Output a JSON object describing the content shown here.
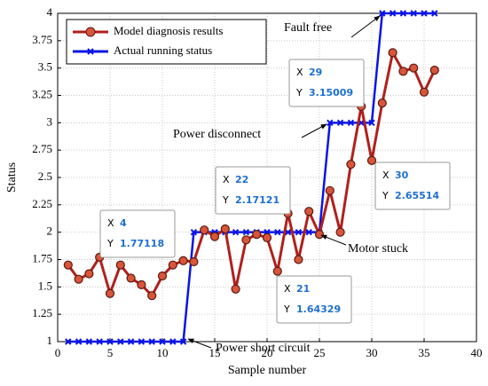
{
  "chart_data": {
    "type": "line",
    "xlabel": "Sample number",
    "ylabel": "Status",
    "x": [
      1,
      2,
      3,
      4,
      5,
      6,
      7,
      8,
      9,
      10,
      11,
      12,
      13,
      14,
      15,
      16,
      17,
      18,
      19,
      20,
      21,
      22,
      23,
      24,
      25,
      26,
      27,
      28,
      29,
      30,
      31,
      32,
      33,
      34,
      35,
      36
    ],
    "series": [
      {
        "name": "Model diagnosis results",
        "color": "#b0201c",
        "marker": "circle",
        "values": [
          1.7,
          1.57,
          1.62,
          1.77118,
          1.44,
          1.7,
          1.58,
          1.52,
          1.42,
          1.6,
          1.7,
          1.74,
          1.73,
          2.02,
          1.96,
          2.03,
          1.48,
          1.93,
          1.98,
          1.95,
          1.64329,
          2.17121,
          1.75,
          2.19,
          1.98,
          2.38,
          2.0,
          2.62,
          3.15009,
          2.65514,
          3.18,
          3.64,
          3.47,
          3.5,
          3.28,
          3.48
        ]
      },
      {
        "name": "Actual running status",
        "color": "#0a14e6",
        "marker": "x",
        "values": [
          1,
          1,
          1,
          1,
          1,
          1,
          1,
          1,
          1,
          1,
          1,
          1,
          2,
          2,
          2,
          2,
          2,
          2,
          2,
          2,
          2,
          2,
          2,
          2,
          2,
          3,
          3,
          3,
          3,
          3,
          4,
          4,
          4,
          4,
          4,
          4
        ]
      }
    ],
    "xlim": [
      0,
      40
    ],
    "xticks": [
      0,
      5,
      10,
      15,
      20,
      25,
      30,
      35,
      40
    ],
    "ylim": [
      1,
      4
    ],
    "yticks": [
      1,
      1.25,
      1.5,
      1.75,
      2,
      2.25,
      2.5,
      2.75,
      3,
      3.25,
      3.5,
      3.75,
      4
    ],
    "grid": true,
    "legend": "upper left",
    "datatip_labels": [
      "X",
      "Y"
    ],
    "datatips": [
      {
        "x": 4,
        "y": 1.77118
      },
      {
        "x": 22,
        "y": 2.17121
      },
      {
        "x": 21,
        "y": 1.64329
      },
      {
        "x": 29,
        "y": 3.15009
      },
      {
        "x": 30,
        "y": 2.65514
      }
    ],
    "annotations": [
      "Fault free",
      "Power disconnect",
      "Motor stuck",
      "Power short circuit"
    ]
  }
}
